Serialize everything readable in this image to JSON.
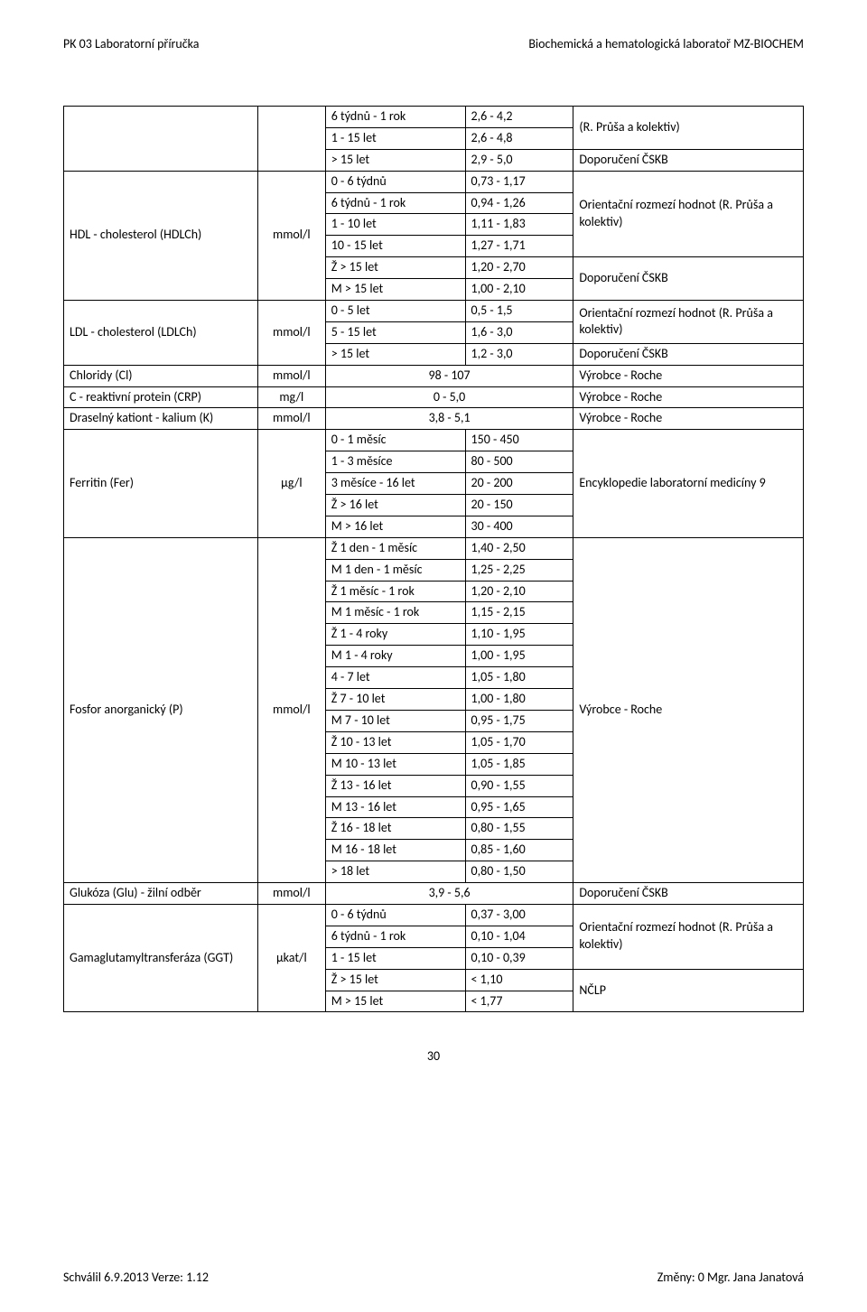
{
  "header_left": "PK 03   Laboratorní příručka",
  "header_right": "Biochemická a hematologická laboratoř MZ-BIOCHEM",
  "page_number": "30",
  "footer_left": "Schválil  6.9.2013   Verze: 1.12",
  "footer_right": "Změny: 0   Mgr. Jana Janatová",
  "txt_orient": "Orientační rozmezí hodnot (R. Průša a kolektiv)",
  "txt_prusa": "(R. Průša a kolektiv)",
  "txt_dop": "Doporučení ČSKB",
  "txt_roche": "Výrobce - Roche",
  "txt_enc": "Encyklopedie laboratorní medicíny 9",
  "txt_nclp": "NČLP",
  "unit_mmoll": "mmol/l",
  "unit_mgl": "mg/l",
  "unit_ugl": "μg/l",
  "unit_ukatl": "μkat/l",
  "param_hdl": "HDL - cholesterol (HDLCh)",
  "param_ldl": "LDL - cholesterol (LDLCh)",
  "param_cl": "Chloridy (Cl)",
  "param_crp": "C - reaktivní protein (CRP)",
  "param_k": "Draselný kationt - kalium (K)",
  "param_fer": "Ferritin (Fer)",
  "param_p": "Fosfor anorganický (P)",
  "param_glu": "Glukóza (Glu) - žilní odběr",
  "param_ggt": "Gamaglutamyltransferáza (GGT)",
  "r1_age": "6 týdnů - 1 rok",
  "r1_val": "2,6 - 4,2",
  "r2_age": "1 - 15 let",
  "r2_val": "2,6 - 4,8",
  "r3_age": "> 15 let",
  "r3_val": "2,9 - 5,0",
  "r4_age": "0 - 6 týdnů",
  "r4_val": "0,73 - 1,17",
  "r5_age": "6 týdnů - 1 rok",
  "r5_val": "0,94 - 1,26",
  "r6_age": "1 - 10 let",
  "r6_val": "1,11 - 1,83",
  "r7_age": "10 - 15 let",
  "r7_val": "1,27 - 1,71",
  "r8_age": "Ž > 15 let",
  "r8_val": "1,20 - 2,70",
  "r9_age": "M > 15 let",
  "r9_val": "1,00 - 2,10",
  "r10_age": "0 - 5 let",
  "r10_val": "0,5 - 1,5",
  "r11_age": "5 - 15 let",
  "r11_val": "1,6 - 3,0",
  "r12_age": "> 15 let",
  "r12_val": "1,2 - 3,0",
  "r13_val": "98 - 107",
  "r14_val": "0 - 5,0",
  "r15_val": "3,8 - 5,1",
  "r16_age": "0 - 1 měsíc",
  "r16_val": "150 - 450",
  "r17_age": "1 - 3 měsíce",
  "r17_val": "80 - 500",
  "r18_age": "3 měsíce - 16 let",
  "r18_val": "20 - 200",
  "r19_age": "Ž > 16 let",
  "r19_val": "20 - 150",
  "r20_age": "M > 16 let",
  "r20_val": "30 - 400",
  "r21_age": "Ž 1 den - 1 měsíc",
  "r21_val": "1,40 - 2,50",
  "r22_age": "M 1 den - 1 měsíc",
  "r22_val": "1,25 - 2,25",
  "r23_age": "Ž 1 měsíc - 1 rok",
  "r23_val": "1,20 - 2,10",
  "r24_age": "M 1 měsíc - 1 rok",
  "r24_val": "1,15 - 2,15",
  "r25_age": "Ž 1 - 4 roky",
  "r25_val": "1,10 - 1,95",
  "r26_age": "M 1 - 4 roky",
  "r26_val": "1,00 - 1,95",
  "r27_age": "4 - 7 let",
  "r27_val": "1,05 - 1,80",
  "r28_age": "Ž 7 - 10 let",
  "r28_val": "1,00 - 1,80",
  "r29_age": "M 7 - 10 let",
  "r29_val": "0,95 - 1,75",
  "r30_age": "Ž 10 - 13 let",
  "r30_val": "1,05 - 1,70",
  "r31_age": "M 10 - 13 let",
  "r31_val": "1,05 - 1,85",
  "r32_age": "Ž 13 - 16 let",
  "r32_val": "0,90 - 1,55",
  "r33_age": "M 13 - 16 let",
  "r33_val": "0,95 - 1,65",
  "r34_age": "Ž 16 - 18 let",
  "r34_val": "0,80 - 1,55",
  "r35_age": "M 16 - 18 let",
  "r35_val": "0,85 - 1,60",
  "r36_age": "> 18 let",
  "r36_val": "0,80 - 1,50",
  "r37_val": "3,9 - 5,6",
  "r38_age": "0 - 6 týdnů",
  "r38_val": "0,37 - 3,00",
  "r39_age": "6 týdnů - 1 rok",
  "r39_val": "0,10 - 1,04",
  "r40_age": "1 - 15 let",
  "r40_val": "0,10 - 0,39",
  "r41_age": "Ž > 15 let",
  "r41_val": "< 1,10",
  "r42_age": "M > 15 let",
  "r42_val": "< 1,77"
}
